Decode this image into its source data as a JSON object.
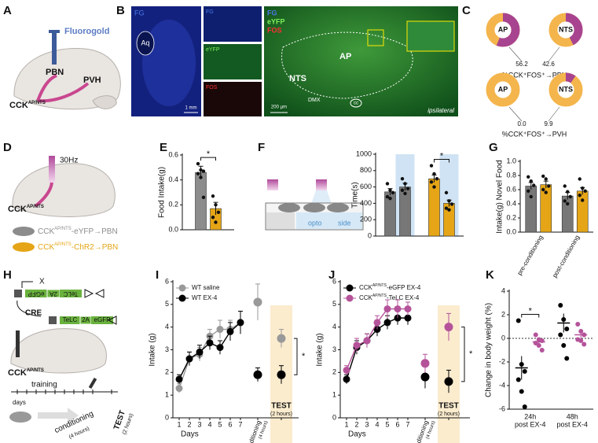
{
  "panels": {
    "A": {
      "label": "A",
      "tracer": "Fluorogold",
      "pbn": "PBN",
      "pvh": "PVH",
      "cck": {
        "base": "CCK",
        "sup": "AP/NTS"
      }
    },
    "B": {
      "label": "B",
      "image1": {
        "stain": "FG",
        "region": "Aq",
        "scale": "1 mm"
      },
      "image2": {
        "stains": [
          "FG",
          "eYFP",
          "FOS"
        ]
      },
      "image3": {
        "stains": [
          "FG",
          "eYFP",
          "FOS"
        ],
        "regions": [
          "AP",
          "NTS",
          "DMX",
          "cc"
        ],
        "scale": "200 µm",
        "side": "ipsilateral"
      }
    },
    "C": {
      "label": "C",
      "captions": [
        "%CCK⁺FOS⁺→PBN",
        "%CCK⁺FOS⁺→PVH"
      ]
    },
    "D": {
      "label": "D",
      "frequency": "30Hz",
      "cck": {
        "base": "CCK",
        "sup": "AP/NTS"
      },
      "legend": [
        {
          "base": "CCK",
          "sup": "AP/NTS",
          "rest": "-eYFP→PBN",
          "color": "#8c8c8c"
        },
        {
          "base": "CCK",
          "sup": "AP/NTS",
          "rest": "-ChR2→PBN",
          "color": "#e5a516"
        }
      ]
    },
    "E": {
      "label": "E"
    },
    "F": {
      "label": "F",
      "schematic": [
        "opto",
        "side"
      ]
    },
    "G": {
      "label": "G"
    },
    "H": {
      "label": "H",
      "x_mark": "X",
      "construct_inverted": [
        "TeLC",
        "2A",
        "eGFP"
      ],
      "recombinase": "CRE",
      "construct_active": [
        "TeLC",
        "2A",
        "eGFP"
      ],
      "cck": {
        "base": "CCK",
        "sup": "AP/NTS"
      },
      "timeline": {
        "training": "training",
        "days": "days",
        "conditioning": "conditioning",
        "conditioning_note": "(4 hours)",
        "test": "TEST",
        "test_note": "(2 hours)"
      }
    },
    "I": {
      "label": "I"
    },
    "J": {
      "label": "J"
    },
    "K": {
      "label": "K"
    }
  },
  "chart_data": [
    {
      "type": "donut",
      "label": "AP",
      "values": [
        56.2
      ],
      "colors": [
        "#a8448f",
        "#f4b54c"
      ]
    },
    {
      "type": "donut",
      "label": "NTS",
      "values": [
        42.6
      ],
      "colors": [
        "#a8448f",
        "#f4b54c"
      ]
    },
    {
      "type": "donut",
      "label": "AP",
      "values": [
        0.0
      ],
      "value_labels": [
        "0.0"
      ],
      "colors": [
        "#a8448f",
        "#f4b54c"
      ]
    },
    {
      "type": "donut",
      "label": "NTS",
      "values": [
        9.9
      ],
      "colors": [
        "#a8448f",
        "#f4b54c"
      ]
    },
    {
      "type": "bar",
      "ylabel": "Food Intake(g)",
      "ylim": [
        0,
        0.6
      ],
      "yticks": [
        {
          "value": 0,
          "label": "0.0"
        },
        0.2,
        0.4,
        0.6
      ],
      "groups": [
        {
          "label": null,
          "bars": [
            {
              "color": "#8c8c8c",
              "value": 0.46,
              "error": 0.05,
              "points": [
                0.53,
                0.48,
                0.47,
                0.45,
                0.42,
                0.26
              ]
            },
            {
              "color": "#e5a516",
              "value": 0.17,
              "error": 0.05,
              "points": [
                0.27,
                0.2,
                0.14,
                0.1,
                0.06
              ]
            }
          ]
        }
      ],
      "annotations": [
        "*"
      ]
    },
    {
      "type": "bar",
      "ylabel": "Time(s)",
      "ylim": [
        0,
        1000
      ],
      "yticks": [
        0,
        200,
        400,
        600,
        800,
        1000
      ],
      "highlight_color": "#cfe3f4",
      "groups": [
        {
          "label": null,
          "bars": [
            {
              "color": "#777777",
              "value": 540,
              "error": 40,
              "highlight": false,
              "points": [
                640,
                560,
                530,
                480,
                460
              ]
            },
            {
              "color": "#777777",
              "value": 600,
              "error": 45,
              "highlight": true,
              "points": [
                700,
                640,
                580,
                560,
                520
              ]
            }
          ]
        },
        {
          "label": null,
          "bars": [
            {
              "color": "#e5a516",
              "value": 700,
              "error": 45,
              "highlight": false,
              "points": [
                860,
                760,
                700,
                660,
                600
              ]
            },
            {
              "color": "#e5a516",
              "value": 400,
              "error": 40,
              "highlight": true,
              "points": [
                530,
                430,
                390,
                340,
                320
              ]
            }
          ]
        }
      ],
      "annotations": [
        "*"
      ]
    },
    {
      "type": "bar",
      "ylabel": "Intake(g) Novel Food",
      "ylim": [
        0,
        1.0
      ],
      "yticks": [
        {
          "value": 0,
          "label": "0.0"
        },
        0.2,
        0.4,
        0.6,
        0.8,
        {
          "value": 1,
          "label": "1.0"
        }
      ],
      "groups": [
        {
          "label": "pre-conditioning",
          "bars": [
            {
              "color": "#777777",
              "value": 0.65,
              "error": 0.05,
              "points": [
                0.78,
                0.72,
                0.66,
                0.58,
                0.5
              ]
            },
            {
              "color": "#e5a516",
              "value": 0.67,
              "error": 0.05,
              "points": [
                0.79,
                0.75,
                0.65,
                0.6,
                0.56
              ]
            }
          ]
        },
        {
          "label": "post-conditioning",
          "bars": [
            {
              "color": "#777777",
              "value": 0.51,
              "error": 0.05,
              "points": [
                0.65,
                0.57,
                0.5,
                0.44,
                0.4
              ]
            },
            {
              "color": "#e5a516",
              "value": 0.58,
              "error": 0.05,
              "points": [
                0.75,
                0.62,
                0.58,
                0.52,
                0.45
              ]
            }
          ]
        }
      ]
    },
    {
      "type": "line",
      "ylabel": "Intake (g)",
      "xlabel": "Days",
      "ylim": [
        0,
        6
      ],
      "yticks": [
        0,
        1,
        2,
        3,
        4,
        5,
        6
      ],
      "highlight_color": "#fbecce",
      "categories": [
        "1",
        "2",
        "3",
        "4",
        "5",
        "6",
        "7",
        "conditioning",
        "TEST"
      ],
      "category_notes": [
        null,
        null,
        null,
        null,
        null,
        null,
        null,
        "(4 hours)",
        "(2 hours)"
      ],
      "series": [
        {
          "name": "WT saline",
          "color": "#999999",
          "values": [
            1.3,
            2.6,
            2.8,
            3.6,
            3.9,
            3.9,
            4.2,
            5.1,
            3.5
          ],
          "errors": [
            0.2,
            0.3,
            0.3,
            0.3,
            0.4,
            0.4,
            0.5,
            0.8,
            0.4
          ]
        },
        {
          "name": "WT EX-4",
          "color": "#000000",
          "values": [
            1.7,
            2.6,
            2.9,
            3.3,
            3.1,
            3.8,
            4.2,
            1.9,
            1.9
          ],
          "errors": [
            0.2,
            0.3,
            0.3,
            0.3,
            0.3,
            0.4,
            0.5,
            0.3,
            0.4
          ]
        }
      ],
      "annotations": [
        "*"
      ]
    },
    {
      "type": "line",
      "ylabel": "Intake (g)",
      "xlabel": "Days",
      "ylim": [
        0,
        6
      ],
      "yticks": [
        0,
        1,
        2,
        3,
        4,
        5,
        6
      ],
      "highlight_color": "#fbecce",
      "categories": [
        "1",
        "2",
        "3",
        "4",
        "5",
        "6",
        "7",
        "conditioning",
        "TEST"
      ],
      "category_notes": [
        null,
        null,
        null,
        null,
        null,
        null,
        null,
        "(4 hours)",
        "(2 hours)"
      ],
      "series": [
        {
          "name": {
            "base": "CCK",
            "sup": "AP/NTS",
            "rest": "-eGFP EX-4"
          },
          "color": "#000000",
          "values": [
            1.7,
            3.1,
            3.4,
            3.9,
            4.2,
            4.4,
            4.4,
            1.8,
            1.6
          ],
          "errors": [
            0.2,
            0.3,
            0.3,
            0.3,
            0.3,
            0.3,
            0.3,
            0.5,
            0.5
          ]
        },
        {
          "name": {
            "base": "CCK",
            "sup": "AP/NTS",
            "rest": "-TeLC  EX-4"
          },
          "color": "#b5539a",
          "values": [
            2.1,
            3.2,
            3.4,
            4.2,
            4.8,
            4.8,
            4.8,
            2.4,
            4.0
          ],
          "errors": [
            0.2,
            0.3,
            0.3,
            0.3,
            0.4,
            0.4,
            0.3,
            0.4,
            0.6
          ]
        }
      ],
      "annotations": [
        "*"
      ]
    },
    {
      "type": "dotplot",
      "ylabel": "Change in body weight (%)",
      "ylim": [
        -6,
        4
      ],
      "yticks": [
        -6,
        -4,
        -2,
        0,
        2,
        4
      ],
      "zero_line": true,
      "categories": [
        "24h",
        "48h"
      ],
      "category_notes": [
        "post EX-4",
        "post EX-4"
      ],
      "series": [
        {
          "color": "#000000",
          "values": [
            -2.5,
            1.3
          ],
          "errors": [
            1.0,
            0.8
          ],
          "points": [
            [
              1.5,
              -2.2,
              -2.8,
              -3.5,
              -4.5,
              -5.8
            ],
            [
              2.8,
              1.6,
              0.8,
              0.3,
              -0.6,
              -1.7
            ]
          ]
        },
        {
          "color": "#b5539a",
          "values": [
            -0.3,
            0.3
          ],
          "errors": [
            0.3,
            0.3
          ],
          "points": [
            [
              0.3,
              -0.1,
              -0.2,
              -0.4,
              -0.6,
              -1.0
            ],
            [
              1.2,
              0.6,
              0.3,
              -0.1,
              -0.2,
              -0.5
            ]
          ]
        }
      ],
      "annotations": [
        "*"
      ]
    }
  ]
}
